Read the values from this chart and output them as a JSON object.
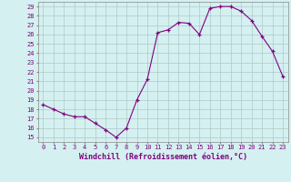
{
  "x": [
    0,
    1,
    2,
    3,
    4,
    5,
    6,
    7,
    8,
    9,
    10,
    11,
    12,
    13,
    14,
    15,
    16,
    17,
    18,
    19,
    20,
    21,
    22,
    23
  ],
  "y": [
    18.5,
    18.0,
    17.5,
    17.2,
    17.2,
    16.5,
    15.8,
    15.0,
    16.0,
    19.0,
    21.2,
    26.2,
    26.5,
    27.3,
    27.2,
    26.0,
    28.8,
    29.0,
    29.0,
    28.5,
    27.5,
    25.8,
    24.2,
    21.5
  ],
  "xlim": [
    -0.5,
    23.5
  ],
  "ylim": [
    14.5,
    29.5
  ],
  "yticks": [
    15,
    16,
    17,
    18,
    19,
    20,
    21,
    22,
    23,
    24,
    25,
    26,
    27,
    28,
    29
  ],
  "xticks": [
    0,
    1,
    2,
    3,
    4,
    5,
    6,
    7,
    8,
    9,
    10,
    11,
    12,
    13,
    14,
    15,
    16,
    17,
    18,
    19,
    20,
    21,
    22,
    23
  ],
  "xlabel": "Windchill (Refroidissement éolien,°C)",
  "line_color": "#800080",
  "marker": "+",
  "bg_color": "#d4f0f0",
  "grid_color": "#b0c8c8",
  "tick_label_color": "#800080",
  "xlabel_color": "#800080",
  "font_size_ticks": 5.0,
  "font_size_xlabel": 6.0
}
